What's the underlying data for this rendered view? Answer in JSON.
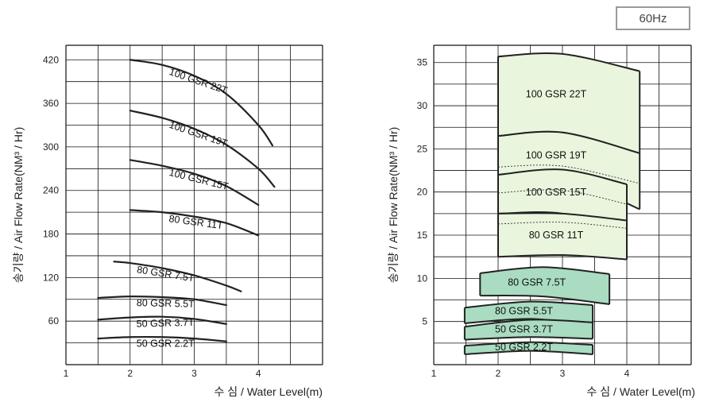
{
  "badge": "60Hz",
  "colors": {
    "curve": "#222222",
    "grid": "#111111",
    "band_light": "#e9f5dc",
    "band_green": "#a9dcc0"
  },
  "chart_data": [
    {
      "type": "line",
      "xlabel": "수 심 / Water Level(m)",
      "ylabel": "송기량 / Air Flow Rate(NM³ / Hr)",
      "xlim": [
        1,
        5
      ],
      "ylim": [
        0,
        440
      ],
      "xticks": [
        "1",
        "2",
        "3",
        "4"
      ],
      "yticks": [
        "60",
        "120",
        "180",
        "240",
        "300",
        "360",
        "420"
      ],
      "grid": true,
      "series": [
        {
          "name": "100 GSR 22T",
          "x": [
            2.0,
            2.5,
            3.0,
            3.5,
            4.0,
            4.22
          ],
          "y": [
            420,
            413,
            398,
            373,
            330,
            302
          ]
        },
        {
          "name": "100 GSR 19T",
          "x": [
            2.0,
            2.5,
            3.0,
            3.5,
            4.0,
            4.25
          ],
          "y": [
            350,
            340,
            325,
            303,
            270,
            245
          ]
        },
        {
          "name": "100 GSR 15T",
          "x": [
            2.0,
            2.5,
            3.0,
            3.5,
            4.0
          ],
          "y": [
            282,
            274,
            263,
            246,
            220
          ]
        },
        {
          "name": "80 GSR 11T",
          "x": [
            2.0,
            2.5,
            3.0,
            3.5,
            4.0
          ],
          "y": [
            213,
            210,
            204,
            195,
            178
          ]
        },
        {
          "name": "80 GSR 7.5T",
          "x": [
            1.75,
            2.0,
            2.5,
            3.0,
            3.5,
            3.73
          ],
          "y": [
            142,
            140,
            133,
            123,
            109,
            101
          ]
        },
        {
          "name": "80 GSR 5.5T",
          "x": [
            1.5,
            2.0,
            2.5,
            3.0,
            3.5
          ],
          "y": [
            92,
            94,
            93,
            90,
            82
          ]
        },
        {
          "name": "50 GSR 3.7T",
          "x": [
            1.5,
            2.0,
            2.5,
            3.0,
            3.5
          ],
          "y": [
            62,
            65,
            66,
            63,
            56
          ]
        },
        {
          "name": "50 GSR 2.2T",
          "x": [
            1.5,
            2.0,
            2.5,
            3.0,
            3.5
          ],
          "y": [
            36,
            38,
            38,
            36,
            32
          ]
        }
      ]
    },
    {
      "type": "area",
      "xlabel": "수 심 / Water Level(m)",
      "ylabel": "송기량 / Air Flow Rate(NM³ / Hr)",
      "xlim": [
        1,
        5
      ],
      "ylim": [
        0,
        37
      ],
      "xticks": [
        "1",
        "2",
        "3",
        "4"
      ],
      "yticks": [
        "5",
        "10",
        "15",
        "20",
        "25",
        "30",
        "35"
      ],
      "grid": true,
      "series": [
        {
          "name": "100 GSR 22T",
          "x": [
            2.0,
            3.0,
            4.2
          ],
          "top": [
            35.7,
            36.0,
            34.0
          ],
          "bottom": [
            26.5,
            26.9,
            24.5
          ],
          "color": "light"
        },
        {
          "name": "100 GSR 19T",
          "x": [
            2.0,
            3.0,
            4.2
          ],
          "top": [
            26.5,
            26.9,
            24.5
          ],
          "bottom": [
            21.5,
            21.8,
            18.0
          ],
          "color": "light"
        },
        {
          "name": "100 GSR 15T",
          "x": [
            2.0,
            3.0,
            4.0
          ],
          "top": [
            22.0,
            22.6,
            20.9
          ],
          "bottom": [
            17.5,
            17.5,
            15.2
          ],
          "color": "light"
        },
        {
          "name": "80 GSR 11T",
          "x": [
            2.0,
            3.0,
            4.0
          ],
          "top": [
            17.5,
            17.5,
            16.7
          ],
          "bottom": [
            12.5,
            12.7,
            12.2
          ],
          "color": "light"
        },
        {
          "name": "80 GSR 7.5T",
          "x": [
            1.72,
            2.7,
            3.73
          ],
          "top": [
            10.6,
            11.3,
            10.5
          ],
          "bottom": [
            8.0,
            7.9,
            7.0
          ],
          "color": "green"
        },
        {
          "name": "80 GSR 5.5T",
          "x": [
            1.48,
            2.5,
            3.47
          ],
          "top": [
            6.6,
            7.3,
            6.9
          ],
          "bottom": [
            4.8,
            5.3,
            4.6
          ],
          "color": "green"
        },
        {
          "name": "50 GSR 3.7T",
          "x": [
            1.48,
            2.5,
            3.47
          ],
          "top": [
            4.4,
            5.2,
            4.9
          ],
          "bottom": [
            2.9,
            3.2,
            3.0
          ],
          "color": "green"
        },
        {
          "name": "50 GSR 2.2T",
          "x": [
            1.48,
            2.5,
            3.47
          ],
          "top": [
            2.2,
            2.6,
            2.3
          ],
          "bottom": [
            1.2,
            1.6,
            1.2
          ],
          "color": "green"
        }
      ]
    }
  ]
}
